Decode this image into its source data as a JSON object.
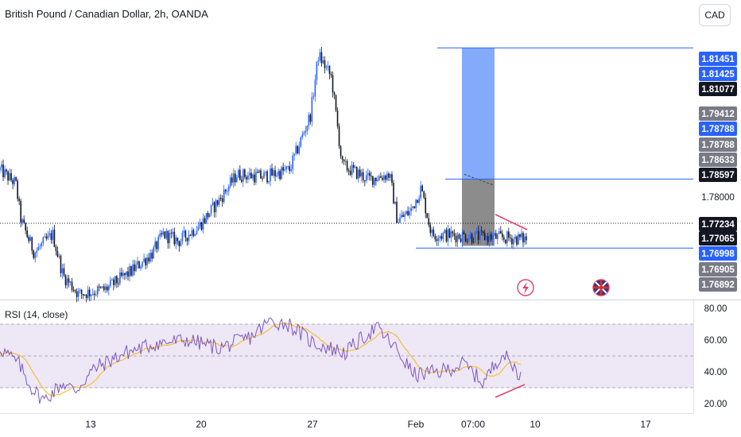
{
  "header": {
    "title": "British Pound / Canadian Dollar, 2h, OANDA",
    "currency_button": "CAD"
  },
  "colors": {
    "up": "#2962ff",
    "down": "#131722",
    "level_line": "#2962ff",
    "target_zone": "#5b8ff9",
    "stop_zone": "#787878",
    "divergence": "#e0406a",
    "rsi_line": "#7e57c2",
    "rsi_ma": "#f5c033",
    "rsi_band": "#ede7f6"
  },
  "chart_data": [
    {
      "type": "candlestick",
      "series_name": "",
      "x_ticks": [
        "13",
        "20",
        "27",
        "Feb",
        "07:00",
        "10",
        "17"
      ],
      "price_range": [
        1.76,
        1.818
      ],
      "key_points": [
        {
          "t": 0,
          "p": 1.788
        },
        {
          "t": 0.03,
          "p": 1.785
        },
        {
          "t": 0.04,
          "p": 1.777
        },
        {
          "t": 0.065,
          "p": 1.77
        },
        {
          "t": 0.1,
          "p": 1.774
        },
        {
          "t": 0.12,
          "p": 1.765
        },
        {
          "t": 0.15,
          "p": 1.761
        },
        {
          "t": 0.2,
          "p": 1.762
        },
        {
          "t": 0.25,
          "p": 1.766
        },
        {
          "t": 0.29,
          "p": 1.77
        },
        {
          "t": 0.31,
          "p": 1.774
        },
        {
          "t": 0.34,
          "p": 1.7725
        },
        {
          "t": 0.38,
          "p": 1.776
        },
        {
          "t": 0.42,
          "p": 1.782
        },
        {
          "t": 0.45,
          "p": 1.787
        },
        {
          "t": 0.5,
          "p": 1.7865
        },
        {
          "t": 0.55,
          "p": 1.788
        },
        {
          "t": 0.59,
          "p": 1.8
        },
        {
          "t": 0.605,
          "p": 1.813
        },
        {
          "t": 0.63,
          "p": 1.808
        },
        {
          "t": 0.65,
          "p": 1.789
        },
        {
          "t": 0.7,
          "p": 1.786
        },
        {
          "t": 0.74,
          "p": 1.787
        },
        {
          "t": 0.755,
          "p": 1.777
        },
        {
          "t": 0.78,
          "p": 1.779
        },
        {
          "t": 0.8,
          "p": 1.784
        },
        {
          "t": 0.82,
          "p": 1.774
        },
        {
          "t": 1.0,
          "p": 1.773
        }
      ],
      "levels": [
        1.8145,
        1.786,
        1.771
      ],
      "position_tool": {
        "entry": 1.786,
        "target": 1.8145,
        "stop": 1.7715
      },
      "price_labels": [
        {
          "text": "1.81451",
          "style": "blue"
        },
        {
          "text": "1.81425",
          "style": "blue"
        },
        {
          "text": "1.81077",
          "style": "dark"
        },
        {
          "text": "1.79412",
          "style": "gray"
        },
        {
          "text": "1.78788",
          "style": "blue"
        },
        {
          "text": "1.78788",
          "style": "gray"
        },
        {
          "text": "1.78633",
          "style": "gray"
        },
        {
          "text": "1.78597",
          "style": "dark"
        },
        {
          "text": "1.78000",
          "style": "plain"
        },
        {
          "text": "1.77234",
          "style": "dark"
        },
        {
          "text": "1.77065",
          "style": "dark"
        },
        {
          "text": "1.76998",
          "style": "blue"
        },
        {
          "text": "1.76905",
          "style": "gray"
        },
        {
          "text": "1.76892",
          "style": "gray"
        }
      ]
    },
    {
      "type": "line",
      "title": "RSI (14, close)",
      "yticks": [
        20,
        40,
        60,
        80
      ],
      "ytick_labels": [
        "20.00",
        "40.00",
        "60.00",
        "80.00"
      ],
      "ylim": [
        15,
        83
      ],
      "bands": [
        30,
        50,
        70
      ],
      "key_points": [
        {
          "t": 0,
          "v": 55
        },
        {
          "t": 0.03,
          "v": 45
        },
        {
          "t": 0.05,
          "v": 30
        },
        {
          "t": 0.07,
          "v": 22
        },
        {
          "t": 0.1,
          "v": 33
        },
        {
          "t": 0.12,
          "v": 28
        },
        {
          "t": 0.15,
          "v": 42
        },
        {
          "t": 0.2,
          "v": 52
        },
        {
          "t": 0.25,
          "v": 58
        },
        {
          "t": 0.3,
          "v": 60
        },
        {
          "t": 0.35,
          "v": 55
        },
        {
          "t": 0.4,
          "v": 62
        },
        {
          "t": 0.43,
          "v": 72
        },
        {
          "t": 0.46,
          "v": 70
        },
        {
          "t": 0.5,
          "v": 58
        },
        {
          "t": 0.55,
          "v": 52
        },
        {
          "t": 0.58,
          "v": 62
        },
        {
          "t": 0.6,
          "v": 68
        },
        {
          "t": 0.63,
          "v": 55
        },
        {
          "t": 0.66,
          "v": 38
        },
        {
          "t": 0.7,
          "v": 40
        },
        {
          "t": 0.74,
          "v": 45
        },
        {
          "t": 0.77,
          "v": 33
        },
        {
          "t": 0.8,
          "v": 52
        },
        {
          "t": 0.83,
          "v": 38
        }
      ],
      "divergence": {
        "from": 24,
        "to": 32
      }
    }
  ]
}
